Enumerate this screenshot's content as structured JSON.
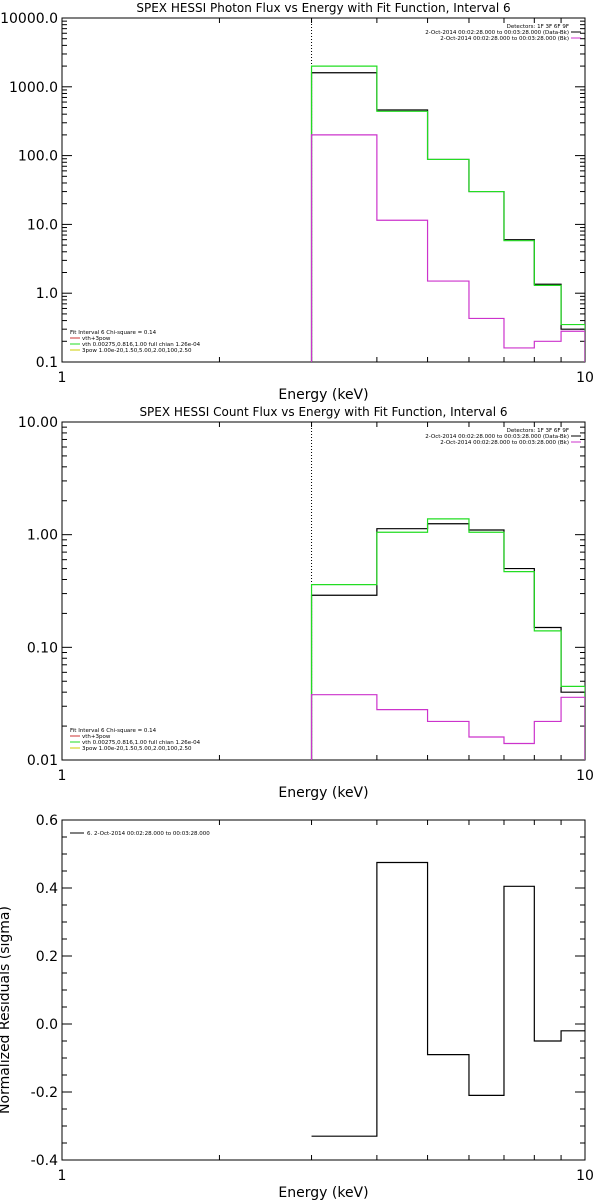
{
  "colors": {
    "data": "#000000",
    "background": "#cc33cc",
    "fit": "#22dd22",
    "thermal": "#cc3333",
    "power": "#cccc00"
  },
  "chart_data": [
    {
      "type": "line",
      "title": "SPEX HESSI Photon Flux vs Energy with Fit Function, Interval 6",
      "xlabel": "Energy (keV)",
      "ylabel": "",
      "xscale": "log",
      "yscale": "log",
      "xlim": [
        1,
        10
      ],
      "ylim": [
        0.1,
        10000
      ],
      "x_ticks": [
        "1",
        "10"
      ],
      "y_ticks": [
        "0.1",
        "1.0",
        "10.0",
        "100.0",
        "1000.0",
        "10000.0"
      ],
      "vline_x": 3,
      "bin_edges": [
        3,
        4,
        5,
        6,
        7,
        8,
        9,
        10
      ],
      "legend_top": [
        "Detectors: 1F 3F 6F 9F",
        "2-Oct-2014 00:02:28.000 to 00:03:28.000 (Data-Bk)",
        "2-Oct-2014 00:02:28.000 to 00:03:28.000 (Bk)"
      ],
      "legend_bottom": [
        "Fit Interval 6   Chi-square = 0.14",
        "vth+3pow",
        "vth 0.00275,0.816,1.00  full chian 1.26e-04",
        "3pow 1.00e-20,1.50,5.00,2.00,100,2.50"
      ],
      "series": [
        {
          "name": "2-Oct-2014 00:02:28.000 to 00:03:28.000 (Data-Bk)",
          "color": "#000000",
          "values": [
            1600,
            460,
            88,
            30,
            6,
            1.35,
            0.3
          ]
        },
        {
          "name": "vth+3pow",
          "color": "#22dd22",
          "values": [
            2000,
            440,
            88,
            30,
            5.8,
            1.3,
            0.35
          ]
        },
        {
          "name": "2-Oct-2014 00:02:28.000 to 00:03:28.000 (Bk)",
          "color": "#cc33cc",
          "values": [
            200,
            11.5,
            1.5,
            0.43,
            0.16,
            0.2,
            0.28
          ]
        }
      ]
    },
    {
      "type": "line",
      "title": "SPEX HESSI Count Flux vs Energy with Fit Function, Interval 6",
      "xlabel": "Energy (keV)",
      "ylabel": "",
      "xscale": "log",
      "yscale": "log",
      "xlim": [
        1,
        10
      ],
      "ylim": [
        0.01,
        10
      ],
      "x_ticks": [
        "1",
        "10"
      ],
      "y_ticks": [
        "0.01",
        "0.10",
        "1.00",
        "10.00"
      ],
      "vline_x": 3,
      "bin_edges": [
        3,
        4,
        5,
        6,
        7,
        8,
        9,
        10
      ],
      "legend_top": [
        "Detectors: 1F 3F 6F 9F",
        "2-Oct-2014 00:02:28.000 to 00:03:28.000 (Data-Bk)",
        "2-Oct-2014 00:02:28.000 to 00:03:28.000 (Bk)"
      ],
      "legend_bottom": [
        "Fit Interval 6   Chi-square = 0.14",
        "vth+3pow",
        "vth 0.00275,0.816,1.00  full chian 1.26e-04",
        "3pow 1.00e-20,1.50,5.00,2.00,100,2.50"
      ],
      "series": [
        {
          "name": "2-Oct-2014 00:02:28.000 to 00:03:28.000 (Data-Bk)",
          "color": "#000000",
          "values": [
            0.29,
            1.13,
            1.25,
            1.1,
            0.5,
            0.15,
            0.04
          ]
        },
        {
          "name": "vth+3pow",
          "color": "#22dd22",
          "values": [
            0.36,
            1.05,
            1.38,
            1.05,
            0.47,
            0.14,
            0.045
          ]
        },
        {
          "name": "2-Oct-2014 00:02:28.000 to 00:03:28.000 (Bk)",
          "color": "#cc33cc",
          "values": [
            0.038,
            0.028,
            0.022,
            0.016,
            0.014,
            0.022,
            0.036
          ]
        }
      ]
    },
    {
      "type": "line",
      "title": "",
      "xlabel": "Energy (keV)",
      "ylabel": "Normalized Residuals (sigma)",
      "xscale": "log",
      "yscale": "linear",
      "xlim": [
        1,
        10
      ],
      "ylim": [
        -0.4,
        0.6
      ],
      "x_ticks": [
        "1",
        "10"
      ],
      "y_ticks": [
        "-0.4",
        "-0.2",
        "0.0",
        "0.2",
        "0.4",
        "0.6"
      ],
      "bin_edges": [
        3,
        4,
        5,
        6,
        7,
        8,
        9,
        10
      ],
      "legend_top": [
        "6.  2-Oct-2014 00:02:28.000 to 00:03:28.000"
      ],
      "series": [
        {
          "name": "6.  2-Oct-2014 00:02:28.000 to 00:03:28.000",
          "color": "#000000",
          "values": [
            -0.33,
            0.475,
            -0.09,
            -0.21,
            0.405,
            -0.05,
            -0.02
          ]
        }
      ]
    }
  ]
}
